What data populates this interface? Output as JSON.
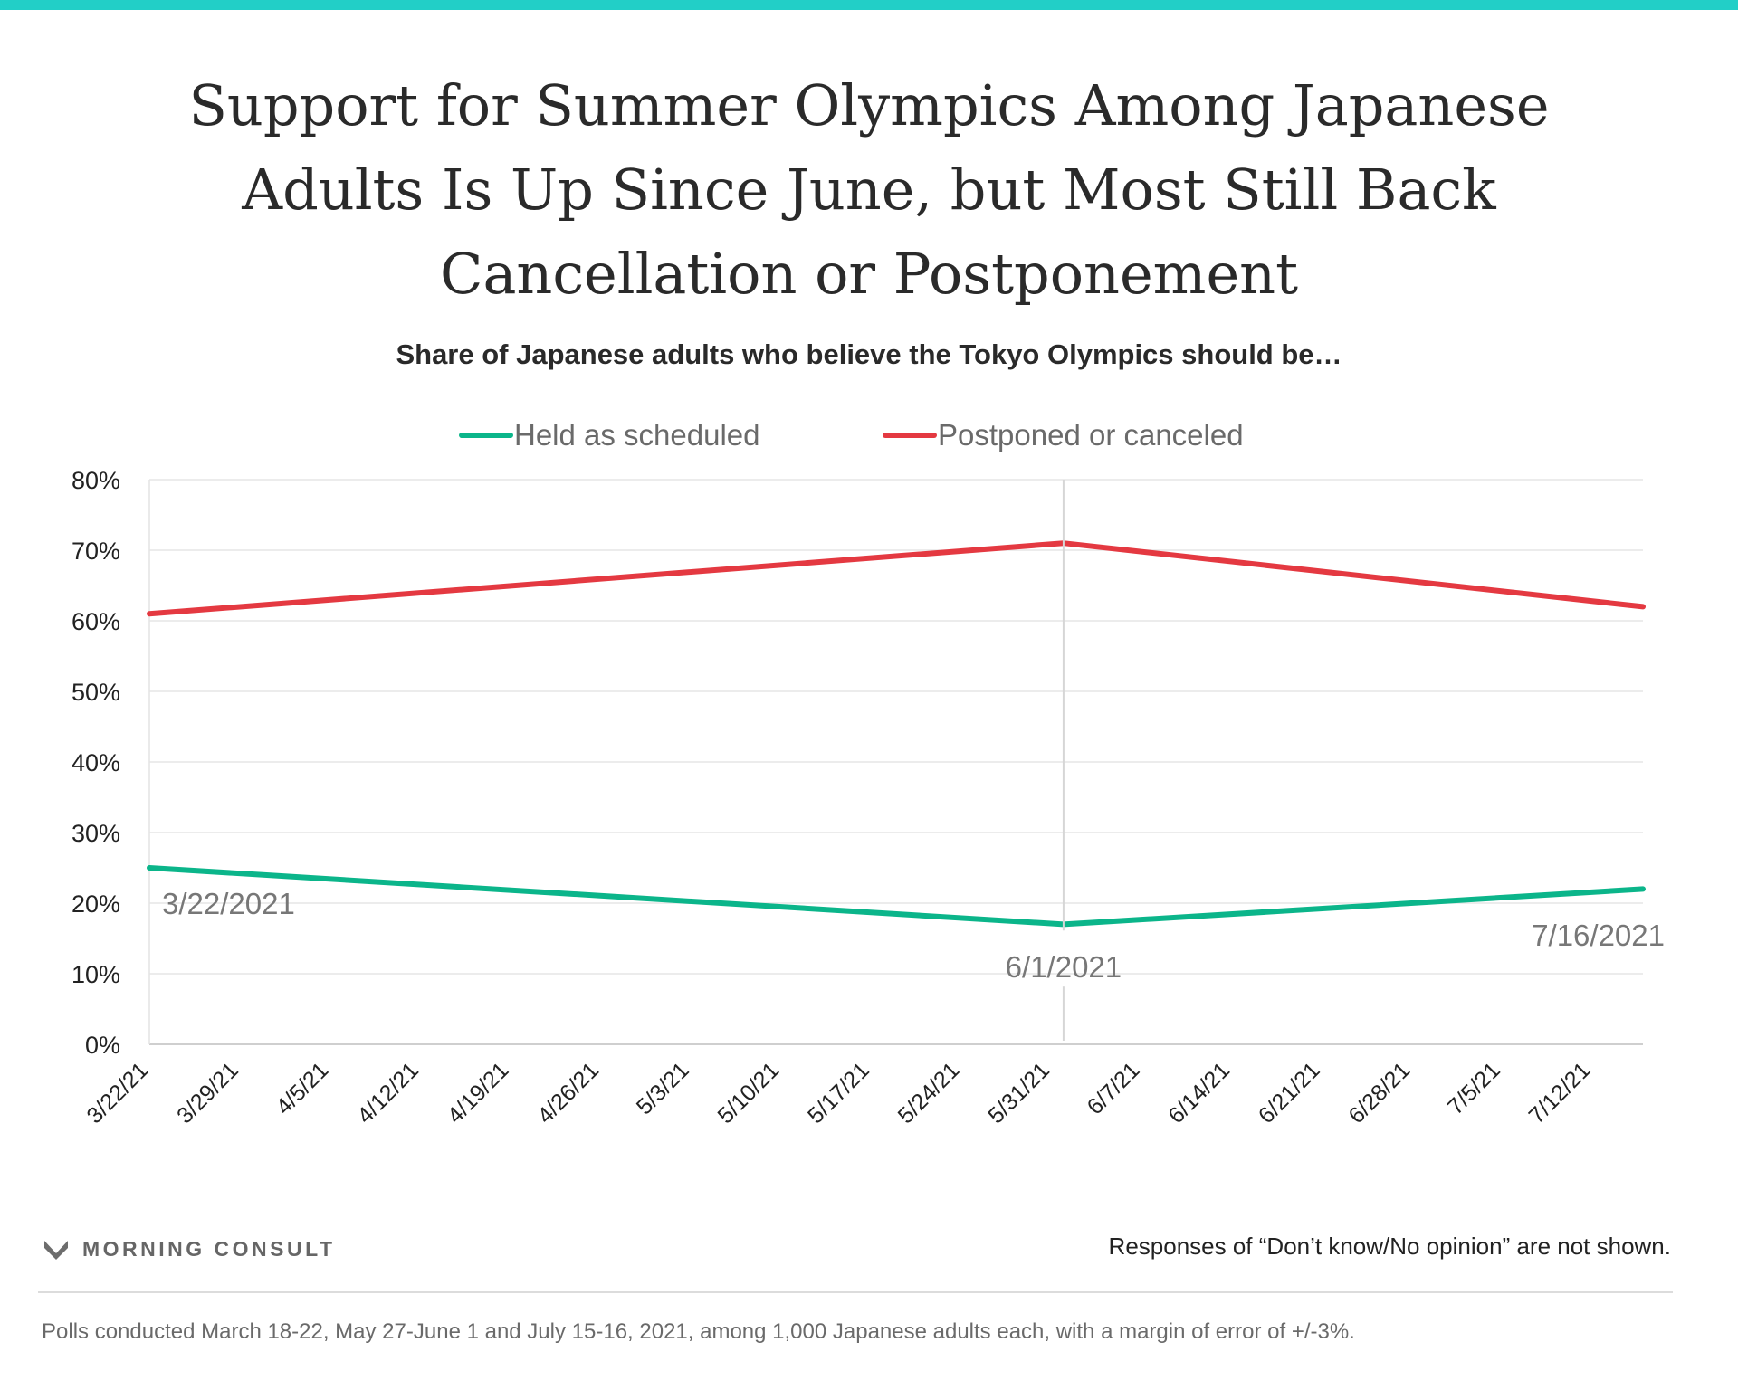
{
  "colors": {
    "accent_bar": "#22cfc7",
    "held": "#0bb58a",
    "postponed": "#e43941",
    "grid": "#e6e6e6",
    "annotation": "#777777"
  },
  "title": "Support for Summer Olympics Among Japanese Adults Is Up Since June, but Most Still Back Cancellation or Postponement",
  "subtitle": "Share of Japanese adults who believe the Tokyo Olympics should be…",
  "chart_data": {
    "type": "line",
    "x_type": "date",
    "x_range": [
      "2021-03-22",
      "2021-07-16"
    ],
    "x_tick_dates": [
      "2021-03-22",
      "2021-03-29",
      "2021-04-05",
      "2021-04-12",
      "2021-04-19",
      "2021-04-26",
      "2021-05-03",
      "2021-05-10",
      "2021-05-17",
      "2021-05-24",
      "2021-05-31",
      "2021-06-07",
      "2021-06-14",
      "2021-06-21",
      "2021-06-28",
      "2021-07-05",
      "2021-07-12"
    ],
    "x_tick_labels": [
      "3/22/21",
      "3/29/21",
      "4/5/21",
      "4/12/21",
      "4/19/21",
      "4/26/21",
      "5/3/21",
      "5/10/21",
      "5/17/21",
      "5/24/21",
      "5/31/21",
      "6/7/21",
      "6/14/21",
      "6/21/21",
      "6/28/21",
      "7/5/21",
      "7/12/21"
    ],
    "y_ticks": [
      0,
      10,
      20,
      30,
      40,
      50,
      60,
      70,
      80
    ],
    "y_tick_labels": [
      "0%",
      "10%",
      "20%",
      "30%",
      "40%",
      "50%",
      "60%",
      "70%",
      "80%"
    ],
    "ylim": [
      0,
      80
    ],
    "grid": true,
    "legend_position": "top-center",
    "series": [
      {
        "name": "Held as scheduled",
        "color": "#0bb58a",
        "points": [
          {
            "x": "2021-03-22",
            "y": 25
          },
          {
            "x": "2021-06-01",
            "y": 17
          },
          {
            "x": "2021-07-16",
            "y": 22
          }
        ]
      },
      {
        "name": "Postponed or canceled",
        "color": "#e43941",
        "points": [
          {
            "x": "2021-03-22",
            "y": 61
          },
          {
            "x": "2021-06-01",
            "y": 71
          },
          {
            "x": "2021-07-16",
            "y": 62
          }
        ]
      }
    ],
    "reference_line": {
      "x": "2021-06-01"
    },
    "annotations": [
      {
        "x": "2021-03-22",
        "y": 20,
        "text": "3/22/2021"
      },
      {
        "x": "2021-06-01",
        "y": 11,
        "text": "6/1/2021"
      },
      {
        "x": "2021-07-16",
        "y": 15.5,
        "text": "7/16/2021"
      }
    ]
  },
  "brand": "MORNING CONSULT",
  "note": "Responses of “Don’t know/No opinion” are not shown.",
  "footnote": "Polls conducted March 18-22, May 27-June 1 and July 15-16, 2021, among 1,000 Japanese adults each, with a margin of error of +/-3%."
}
